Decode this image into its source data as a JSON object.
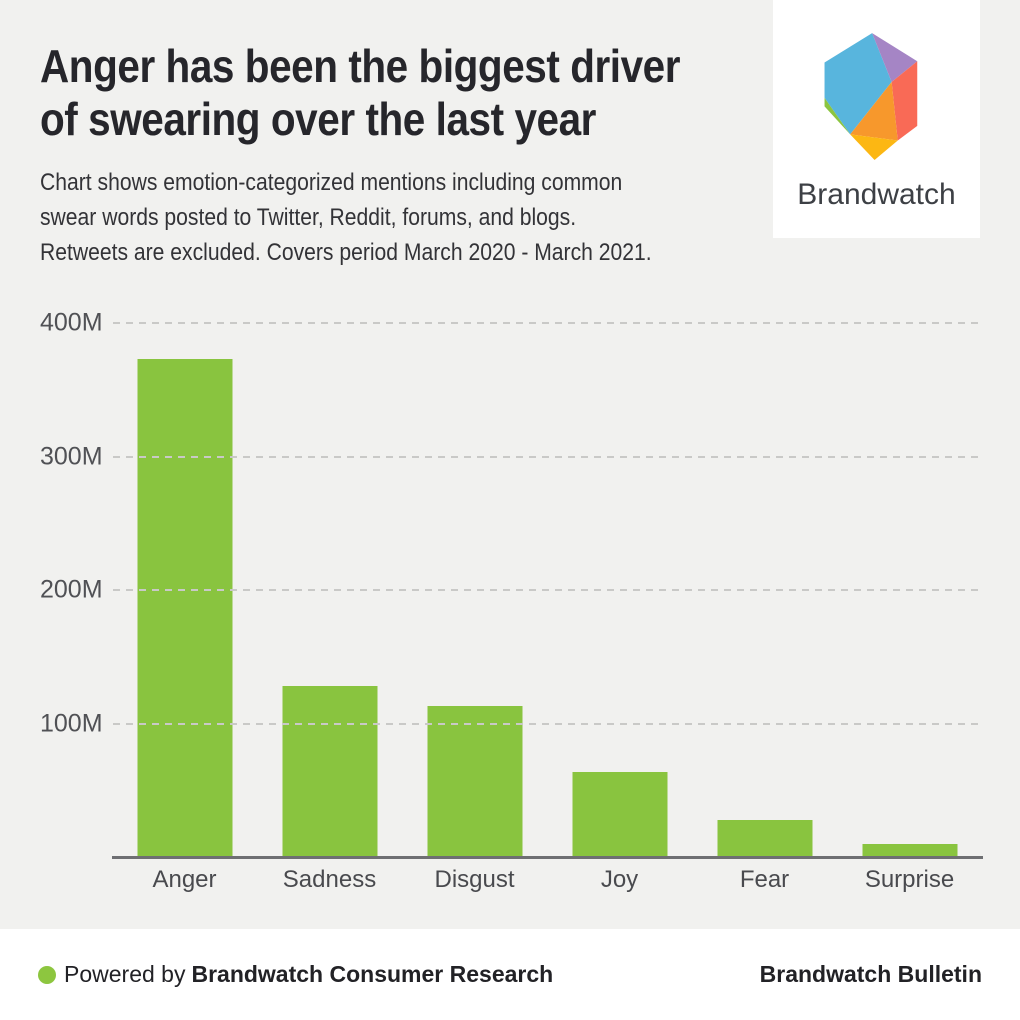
{
  "header": {
    "title": "Anger has been the biggest driver of swearing over the last year",
    "title_lines": [
      "Anger has been the biggest driver",
      "of swearing over the last year"
    ],
    "subtitle": "Chart shows emotion-categorized mentions including common swear words posted to Twitter, Reddit, forums, and blogs. Retweets are excluded. Covers period March 2020 - March 2021.",
    "subtitle_lines": [
      "Chart shows emotion-categorized mentions including common",
      "swear words posted to Twitter, Reddit, forums, and blogs.",
      "Retweets are excluded. Covers period March 2020 - March 2021."
    ]
  },
  "logo": {
    "brand_name": "Brandwatch",
    "facet_colors": {
      "blue": "#58b5dd",
      "purple": "#a585c5",
      "coral": "#f96a56",
      "orange": "#f7982c",
      "yellow": "#fcb713",
      "green": "#8bc540"
    }
  },
  "chart_data": {
    "type": "bar",
    "categories": [
      "Anger",
      "Sadness",
      "Disgust",
      "Joy",
      "Fear",
      "Surprise"
    ],
    "values": [
      373,
      128,
      113,
      64,
      28,
      10
    ],
    "value_unit": "millions of mentions (estimated from gridlines)",
    "title": "Emotion-categorized mentions including common swear words",
    "xlabel": "",
    "ylabel": "",
    "ylim": [
      0,
      400
    ],
    "y_ticks": [
      {
        "label": "400M",
        "value": 400
      },
      {
        "label": "300M",
        "value": 300
      },
      {
        "label": "200M",
        "value": 200
      },
      {
        "label": "100M",
        "value": 100
      }
    ],
    "grid": "horizontal dashed",
    "legend": "none",
    "bar_color": "#89c43f"
  },
  "footer": {
    "powered_by_prefix": "Powered by",
    "powered_by_bold": "Brandwatch Consumer Research",
    "right_text": "Brandwatch Bulletin",
    "dot_color": "#8dc63f"
  }
}
